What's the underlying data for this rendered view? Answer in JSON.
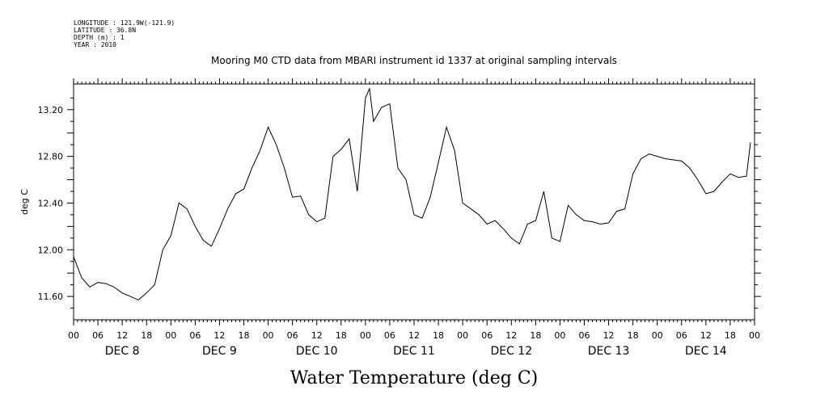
{
  "header": {
    "longitude": "LONGITUDE : 121.9W(-121.9)",
    "latitude": "LATITUDE : 36.8N",
    "depth": "DEPTH (m) : 1",
    "year": "YEAR : 2010"
  },
  "chart_data": {
    "type": "line",
    "title": "Mooring M0 CTD data from MBARI instrument id 1337 at original sampling intervals",
    "xlabel": "Water Temperature (deg C)",
    "ylabel": "deg C",
    "ylim": [
      11.4,
      13.42
    ],
    "yticks": [
      11.6,
      12.0,
      12.4,
      12.8,
      13.2
    ],
    "ytick_labels": [
      "11.60",
      "12.00",
      "12.40",
      "12.80",
      "13.20"
    ],
    "xlim": [
      "2010-12-08T00:00",
      "2010-12-15T00:00"
    ],
    "hour_tick_labels": [
      "00",
      "06",
      "12",
      "18"
    ],
    "day_labels": [
      "DEC 8",
      "DEC 9",
      "DEC 10",
      "DEC 11",
      "DEC 12",
      "DEC 13",
      "DEC 14"
    ],
    "grid": false,
    "series": [
      {
        "color": "#000000",
        "x": [
          "2010-12-08T00:00",
          "2010-12-08T02:00",
          "2010-12-08T04:00",
          "2010-12-08T06:00",
          "2010-12-08T08:00",
          "2010-12-08T10:00",
          "2010-12-08T12:00",
          "2010-12-08T14:00",
          "2010-12-08T16:00",
          "2010-12-08T18:00",
          "2010-12-08T20:00",
          "2010-12-08T22:00",
          "2010-12-09T00:00",
          "2010-12-09T02:00",
          "2010-12-09T04:00",
          "2010-12-09T06:00",
          "2010-12-09T08:00",
          "2010-12-09T10:00",
          "2010-12-09T12:00",
          "2010-12-09T14:00",
          "2010-12-09T16:00",
          "2010-12-09T18:00",
          "2010-12-09T20:00",
          "2010-12-09T22:00",
          "2010-12-10T00:00",
          "2010-12-10T02:00",
          "2010-12-10T04:00",
          "2010-12-10T06:00",
          "2010-12-10T08:00",
          "2010-12-10T10:00",
          "2010-12-10T12:00",
          "2010-12-10T14:00",
          "2010-12-10T16:00",
          "2010-12-10T18:00",
          "2010-12-10T20:00",
          "2010-12-10T22:00",
          "2010-12-11T00:00",
          "2010-12-11T01:00",
          "2010-12-11T02:00",
          "2010-12-11T04:00",
          "2010-12-11T06:00",
          "2010-12-11T08:00",
          "2010-12-11T10:00",
          "2010-12-11T12:00",
          "2010-12-11T14:00",
          "2010-12-11T16:00",
          "2010-12-11T18:00",
          "2010-12-11T20:00",
          "2010-12-11T22:00",
          "2010-12-12T00:00",
          "2010-12-12T02:00",
          "2010-12-12T04:00",
          "2010-12-12T06:00",
          "2010-12-12T08:00",
          "2010-12-12T10:00",
          "2010-12-12T12:00",
          "2010-12-12T14:00",
          "2010-12-12T16:00",
          "2010-12-12T18:00",
          "2010-12-12T20:00",
          "2010-12-12T22:00",
          "2010-12-13T00:00",
          "2010-12-13T02:00",
          "2010-12-13T04:00",
          "2010-12-13T06:00",
          "2010-12-13T08:00",
          "2010-12-13T10:00",
          "2010-12-13T12:00",
          "2010-12-13T14:00",
          "2010-12-13T16:00",
          "2010-12-13T18:00",
          "2010-12-13T20:00",
          "2010-12-13T22:00",
          "2010-12-14T00:00",
          "2010-12-14T02:00",
          "2010-12-14T04:00",
          "2010-12-14T06:00",
          "2010-12-14T08:00",
          "2010-12-14T10:00",
          "2010-12-14T12:00",
          "2010-12-14T14:00",
          "2010-12-14T16:00",
          "2010-12-14T18:00",
          "2010-12-14T20:00",
          "2010-12-14T22:00",
          "2010-12-14T23:00"
        ],
        "y": [
          11.94,
          11.76,
          11.68,
          11.72,
          11.71,
          11.68,
          11.63,
          11.6,
          11.57,
          11.63,
          11.7,
          12.0,
          12.12,
          12.4,
          12.35,
          12.2,
          12.08,
          12.03,
          12.18,
          12.35,
          12.48,
          12.52,
          12.7,
          12.85,
          13.05,
          12.9,
          12.7,
          12.45,
          12.46,
          12.3,
          12.24,
          12.27,
          12.8,
          12.86,
          12.95,
          12.5,
          13.3,
          13.38,
          13.1,
          13.22,
          13.25,
          12.7,
          12.6,
          12.3,
          12.27,
          12.45,
          12.75,
          13.05,
          12.85,
          12.4,
          12.35,
          12.3,
          12.22,
          12.25,
          12.18,
          12.1,
          12.05,
          12.22,
          12.25,
          12.5,
          12.1,
          12.07,
          12.38,
          12.3,
          12.25,
          12.24,
          12.22,
          12.23,
          12.33,
          12.35,
          12.65,
          12.78,
          12.82,
          12.8,
          12.78,
          12.77,
          12.76,
          12.7,
          12.6,
          12.48,
          12.5,
          12.58,
          12.65,
          12.62,
          12.63,
          12.92
        ]
      }
    ]
  }
}
